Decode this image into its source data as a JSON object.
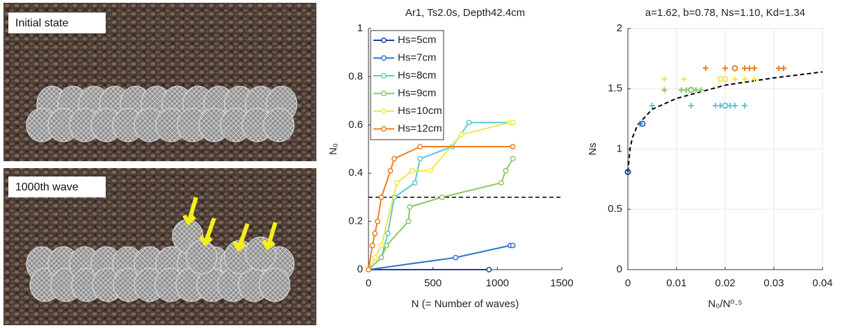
{
  "photos": [
    {
      "label": "Initial state"
    },
    {
      "label": "1000th wave"
    }
  ],
  "chart_data": [
    {
      "type": "line",
      "title": "Ar1, Ts2.0s, Depth42.4cm",
      "xlabel": "N (= Number of waves)",
      "ylabel": "N₀",
      "xlim": [
        0,
        1500
      ],
      "xticks": [
        0,
        500,
        1000,
        1500
      ],
      "ylim": [
        0,
        1
      ],
      "yticks": [
        0,
        0.2,
        0.4,
        0.6,
        0.8,
        1
      ],
      "legend": "upper left",
      "hline": 0.3,
      "series": [
        {
          "name": "Hs=5cm",
          "color": "#1f3f9a",
          "x": [
            0,
            935
          ],
          "values": [
            0,
            0
          ]
        },
        {
          "name": "Hs=7cm",
          "color": "#2e75c9",
          "x": [
            0,
            676,
            1100,
            1120
          ],
          "values": [
            0,
            0.05,
            0.1,
            0.1
          ]
        },
        {
          "name": "Hs=8cm",
          "color": "#5bc8d6",
          "x": [
            0,
            100,
            150,
            200,
            360,
            400,
            650,
            780,
            1120
          ],
          "values": [
            0,
            0.05,
            0.15,
            0.3,
            0.36,
            0.46,
            0.51,
            0.61,
            0.61
          ]
        },
        {
          "name": "Hs=9cm",
          "color": "#8ac765",
          "x": [
            0,
            100,
            140,
            310,
            320,
            570,
            1030,
            1065,
            1120
          ],
          "values": [
            0,
            0.05,
            0.1,
            0.2,
            0.26,
            0.3,
            0.36,
            0.41,
            0.46
          ]
        },
        {
          "name": "Hs=10cm",
          "color": "#f2e646",
          "x": [
            0,
            50,
            100,
            220,
            340,
            480,
            720,
            1100,
            1120
          ],
          "values": [
            0,
            0.05,
            0.1,
            0.36,
            0.41,
            0.41,
            0.56,
            0.61,
            0.61
          ]
        },
        {
          "name": "Hs=12cm",
          "color": "#ef7b22",
          "x": [
            0,
            30,
            50,
            70,
            100,
            170,
            200,
            400,
            1120
          ],
          "values": [
            0,
            0.1,
            0.15,
            0.2,
            0.3,
            0.41,
            0.46,
            0.51,
            0.51
          ]
        }
      ]
    },
    {
      "type": "scatter",
      "title": "a=1.62, b=0.78, Ns=1.10, Kd=1.34",
      "xlabel": "N₀/N⁰·⁵",
      "ylabel": "Ns",
      "xlim": [
        0,
        0.04
      ],
      "xticks": [
        0,
        0.01,
        0.02,
        0.03,
        0.04
      ],
      "ylim": [
        0,
        2
      ],
      "yticks": [
        0,
        0.5,
        1,
        1.5,
        2
      ],
      "grid": true,
      "fit_curve": {
        "x": [
          0,
          0.0005,
          0.001,
          0.002,
          0.005,
          0.01,
          0.02,
          0.03,
          0.04
        ],
        "values": [
          0.81,
          1.02,
          1.1,
          1.2,
          1.33,
          1.42,
          1.53,
          1.59,
          1.64
        ]
      },
      "series": [
        {
          "color": "#1f3f9a",
          "x": [
            0
          ],
          "values": [
            0.81
          ],
          "markers": [
            "o"
          ]
        },
        {
          "color": "#2e75c9",
          "x": [
            0.0025,
            0.003
          ],
          "values": [
            1.21,
            1.21
          ],
          "markers": [
            "+",
            "o"
          ]
        },
        {
          "color": "#5bc8d6",
          "x": [
            0.005,
            0.013,
            0.018,
            0.019,
            0.02,
            0.021,
            0.022,
            0.024
          ],
          "values": [
            1.36,
            1.36,
            1.36,
            1.36,
            1.36,
            1.36,
            1.36,
            1.36
          ],
          "markers": [
            "+",
            "+",
            "+",
            "+",
            "o",
            "+",
            "+",
            "+"
          ]
        },
        {
          "color": "#8ac765",
          "x": [
            0.0075,
            0.011,
            0.012,
            0.013,
            0.014,
            0.015
          ],
          "values": [
            1.49,
            1.49,
            1.49,
            1.49,
            1.49,
            1.49
          ],
          "markers": [
            "+",
            "+",
            "+",
            "o",
            "+",
            "+"
          ]
        },
        {
          "color": "#f2e646",
          "x": [
            0.0075,
            0.0115,
            0.019,
            0.02,
            0.022,
            0.024,
            0.026
          ],
          "values": [
            1.58,
            1.58,
            1.58,
            1.58,
            1.58,
            1.58,
            1.58
          ],
          "markers": [
            "+",
            "+",
            "o",
            "o",
            "+",
            "+",
            "+"
          ]
        },
        {
          "color": "#ef7b22",
          "x": [
            0.016,
            0.02,
            0.022,
            0.024,
            0.025,
            0.026,
            0.031,
            0.032
          ],
          "values": [
            1.67,
            1.67,
            1.67,
            1.67,
            1.67,
            1.67,
            1.67,
            1.67
          ],
          "markers": [
            "+",
            "+",
            "o",
            "+",
            "+",
            "+",
            "+",
            "+"
          ]
        }
      ]
    }
  ]
}
